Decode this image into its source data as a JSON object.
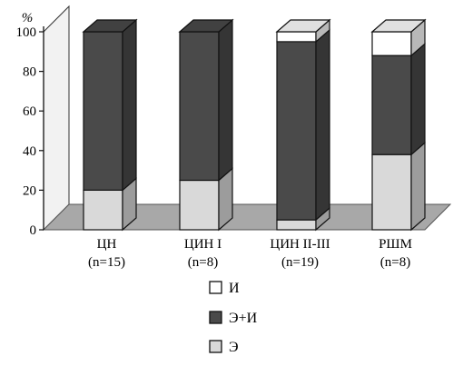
{
  "chart_data": {
    "type": "bar",
    "stacked": true,
    "three_d": true,
    "ylabel": "%",
    "ylim": [
      0,
      100
    ],
    "yticks": [
      "0",
      "20",
      "40",
      "60",
      "80",
      "100"
    ],
    "grid": false,
    "legend_position": "bottom",
    "categories": [
      {
        "name": "ЦН",
        "n": "(n=15)"
      },
      {
        "name": "ЦИН I",
        "n": "(n=8)"
      },
      {
        "name": "ЦИН II-III",
        "n": "(n=19)"
      },
      {
        "name": "РШМ",
        "n": "(n=8)"
      }
    ],
    "series": [
      {
        "name": "Э",
        "color": "#d9d9d9",
        "values": [
          20,
          25,
          5,
          38
        ]
      },
      {
        "name": "Э+И",
        "color": "#4a4a4a",
        "values": [
          80,
          75,
          90,
          50
        ]
      },
      {
        "name": "И",
        "color": "#ffffff",
        "values": [
          0,
          0,
          5,
          12
        ]
      }
    ],
    "legend_order": [
      "И",
      "Э+И",
      "Э"
    ]
  }
}
